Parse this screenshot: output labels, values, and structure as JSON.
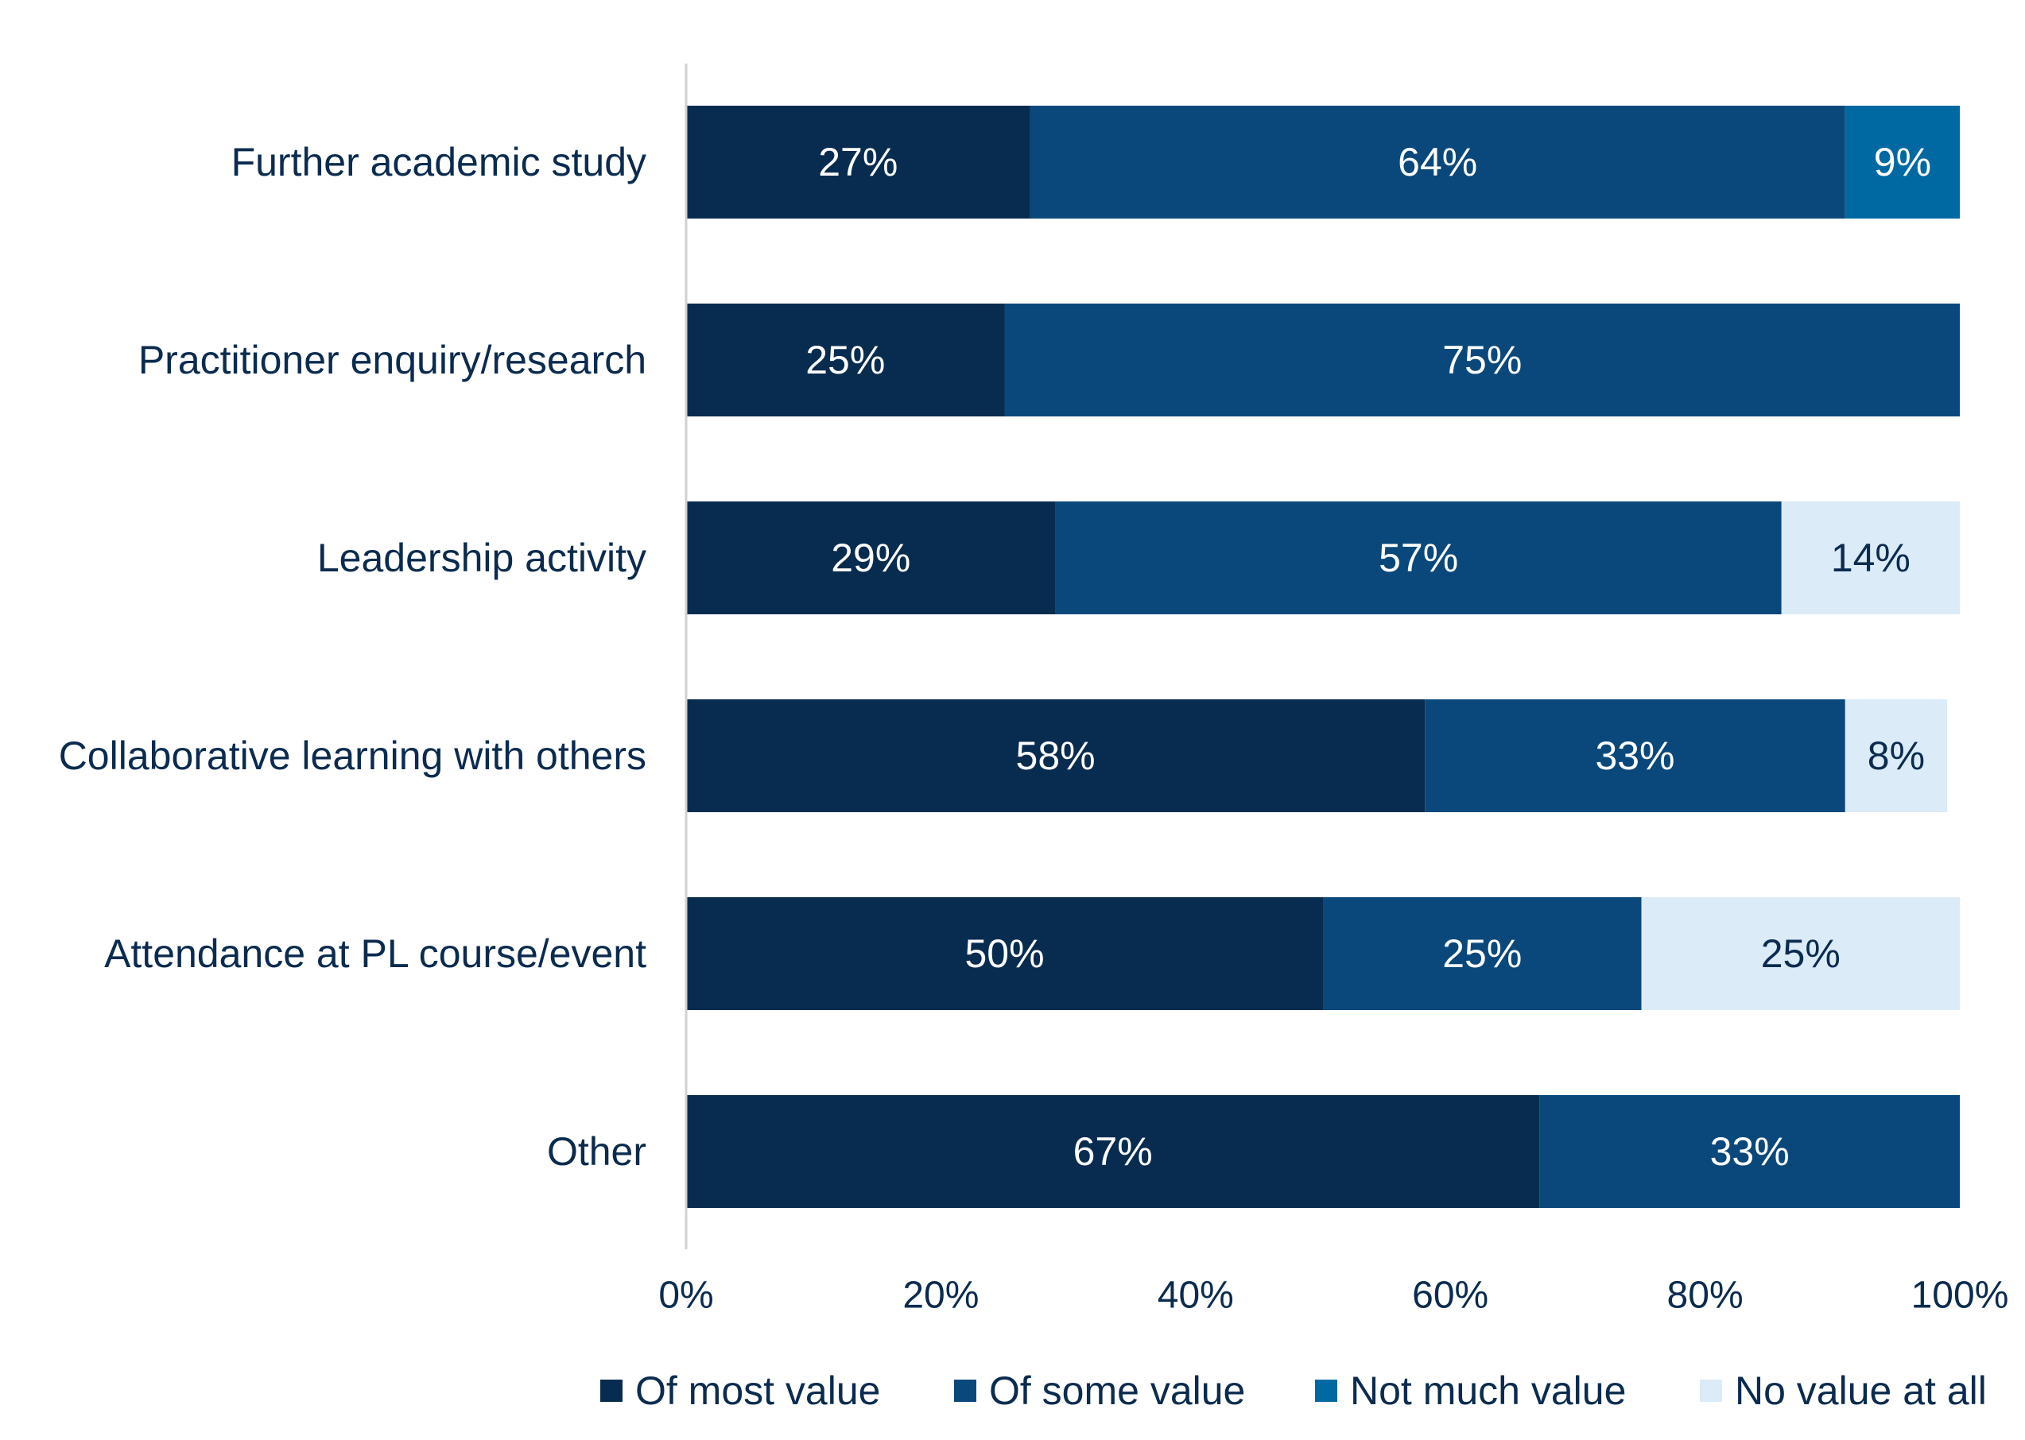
{
  "chart_data": {
    "type": "bar",
    "orientation": "horizontal",
    "stacked": true,
    "categories": [
      "Further academic study",
      "Practitioner enquiry/research",
      "Leadership activity",
      "Collaborative learning with others",
      "Attendance at PL course/event",
      "Other"
    ],
    "series": [
      {
        "name": "Of most value",
        "color": "#082c4f",
        "label_color": "#ffffff",
        "values": [
          27,
          25,
          29,
          58,
          50,
          67
        ]
      },
      {
        "name": "Of some value",
        "color": "#0a487b",
        "label_color": "#ffffff",
        "values": [
          64,
          75,
          57,
          33,
          25,
          33
        ]
      },
      {
        "name": "Not much value",
        "color": "#0069a2",
        "label_color": "#ffffff",
        "values": [
          9,
          0,
          0,
          0,
          0,
          0
        ]
      },
      {
        "name": "No value at all",
        "color": "#dbebf8",
        "label_color": "#0b2b4f",
        "values": [
          0,
          0,
          14,
          8,
          25,
          0
        ]
      }
    ],
    "xlim": [
      0,
      100
    ],
    "x_ticks": [
      "0%",
      "20%",
      "40%",
      "60%",
      "80%",
      "100%"
    ],
    "value_suffix": "%",
    "title": "",
    "xlabel": "",
    "ylabel": "",
    "grid": false,
    "legend_position": "bottom"
  }
}
